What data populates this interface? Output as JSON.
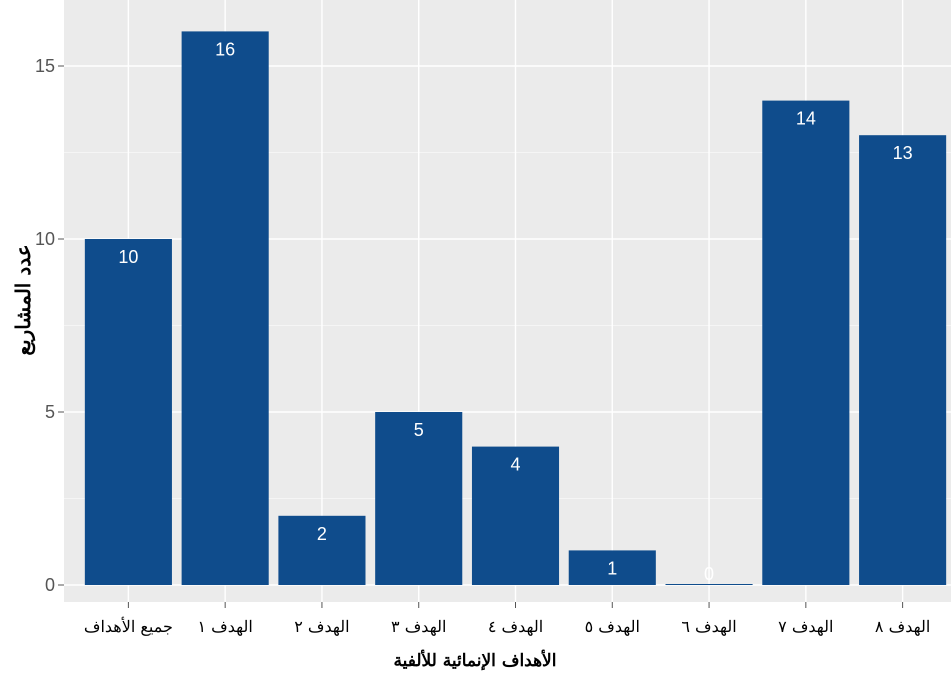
{
  "chart_data": {
    "type": "bar",
    "categories": [
      "جميع الأهداف",
      "الهدف ١",
      "الهدف ٢",
      "الهدف ٣",
      "الهدف ٤",
      "الهدف ٥",
      "الهدف ٦",
      "الهدف ٧",
      "الهدف ٨"
    ],
    "values": [
      10,
      16,
      2,
      5,
      4,
      1,
      0,
      14,
      13
    ],
    "data_labels": [
      "10",
      "16",
      "2",
      "5",
      "4",
      "1",
      "0",
      "14",
      "13"
    ],
    "xlabel": "الأهداف الإنمائية للألفية",
    "ylabel": "عدد المشاريع",
    "ylim": [
      -0.5,
      16.8
    ],
    "yticks": [
      0,
      5,
      10,
      15
    ],
    "ytick_labels": [
      "0",
      "5",
      "10",
      "15"
    ],
    "grid": true,
    "legend": "none",
    "colors": {
      "bar": "#0f4c8c",
      "panel": "#ebebeb",
      "grid": "#ffffff",
      "label": "#ffffff",
      "zero_label": "#333333"
    }
  }
}
